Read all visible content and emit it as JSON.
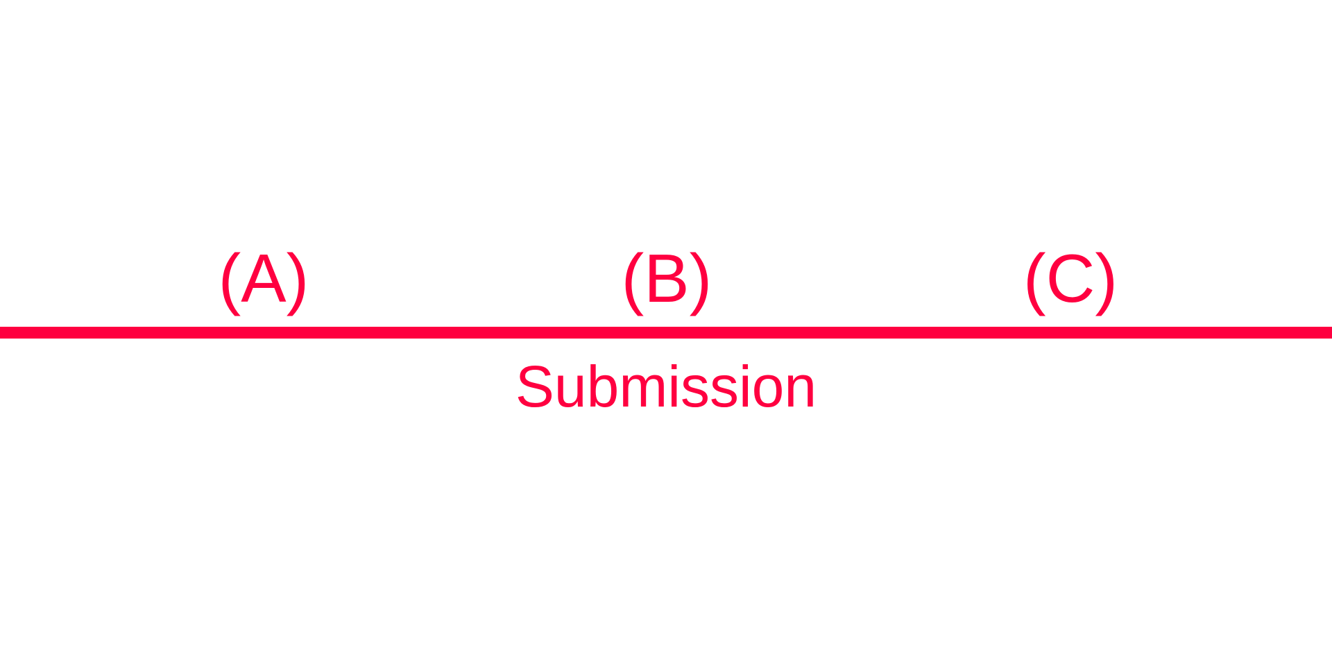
{
  "colors": {
    "accent": "#ff0040",
    "background": "#ffffff"
  },
  "options": [
    {
      "label": "(A)"
    },
    {
      "label": "(B)"
    },
    {
      "label": "(C)"
    }
  ],
  "caption": "Submission"
}
